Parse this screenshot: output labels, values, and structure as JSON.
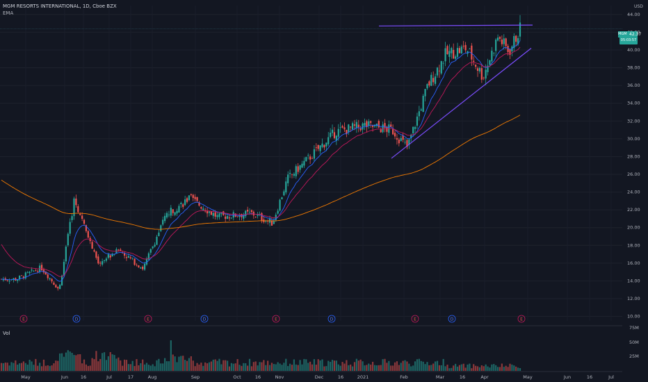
{
  "header": {
    "title": "MGM RESORTS INTERNATIONAL, 1D, Cboe BZX",
    "indicator": "EMA",
    "volume_label": "Vol",
    "currency": "USD"
  },
  "price_badge": {
    "ticker": "MGM",
    "price": "42.37",
    "countdown": "05:03:57"
  },
  "colors": {
    "background": "#131722",
    "up": "#26a69a",
    "down": "#ef5350",
    "ema_short": "#2962ff",
    "ema_mid": "#c2185b",
    "ema_long": "#f57c00",
    "trendline": "#7b4dff"
  },
  "chart_data": {
    "type": "candlestick",
    "title": "MGM RESORTS INTERNATIONAL, 1D, Cboe BZX",
    "x_ticks": [
      "May",
      "Jun",
      "16",
      "Jul",
      "17",
      "Aug",
      "Sep",
      "Oct",
      "16",
      "Nov",
      "Dec",
      "16",
      "2021",
      "Feb",
      "Mar",
      "16",
      "Apr",
      "May",
      "Jun",
      "16",
      "Jul"
    ],
    "y_ticks": [
      "44.00",
      "42.00",
      "40.00",
      "38.00",
      "36.00",
      "34.00",
      "32.00",
      "30.00",
      "28.00",
      "26.00",
      "24.00",
      "22.00",
      "20.00",
      "18.00",
      "16.00",
      "14.00",
      "12.00",
      "10.00"
    ],
    "ylim": [
      9.5,
      45
    ],
    "volume_ticks": [
      "75M",
      "50M",
      "25M"
    ],
    "last_price": 42.37,
    "horizontal_line": 42.37,
    "earnings_markers": [
      "E",
      "D",
      "E",
      "D",
      "E",
      "D",
      "E",
      "D",
      "E"
    ],
    "ohlc_keypoints": [
      {
        "date": "2020-04-27",
        "close": 14.2
      },
      {
        "date": "2020-05-15",
        "close": 15.5
      },
      {
        "date": "2020-05-28",
        "close": 13.0
      },
      {
        "date": "2020-06-08",
        "close": 23.2
      },
      {
        "date": "2020-06-25",
        "close": 16.0
      },
      {
        "date": "2020-07-10",
        "close": 17.5
      },
      {
        "date": "2020-07-28",
        "close": 15.4
      },
      {
        "date": "2020-08-14",
        "close": 21.5
      },
      {
        "date": "2020-08-31",
        "close": 23.3
      },
      {
        "date": "2020-09-20",
        "close": 21.2
      },
      {
        "date": "2020-10-15",
        "close": 21.6
      },
      {
        "date": "2020-10-30",
        "close": 20.5
      },
      {
        "date": "2020-11-10",
        "close": 25.5
      },
      {
        "date": "2020-11-30",
        "close": 28.5
      },
      {
        "date": "2020-12-15",
        "close": 30.8
      },
      {
        "date": "2021-01-05",
        "close": 31.5
      },
      {
        "date": "2021-01-25",
        "close": 31.0
      },
      {
        "date": "2021-02-05",
        "close": 29.0
      },
      {
        "date": "2021-02-20",
        "close": 36.0
      },
      {
        "date": "2021-03-05",
        "close": 39.5
      },
      {
        "date": "2021-03-20",
        "close": 40.2
      },
      {
        "date": "2021-04-01",
        "close": 37.0
      },
      {
        "date": "2021-04-12",
        "close": 41.5
      },
      {
        "date": "2021-04-20",
        "close": 39.8
      },
      {
        "date": "2021-04-28",
        "close": 42.37
      }
    ]
  }
}
